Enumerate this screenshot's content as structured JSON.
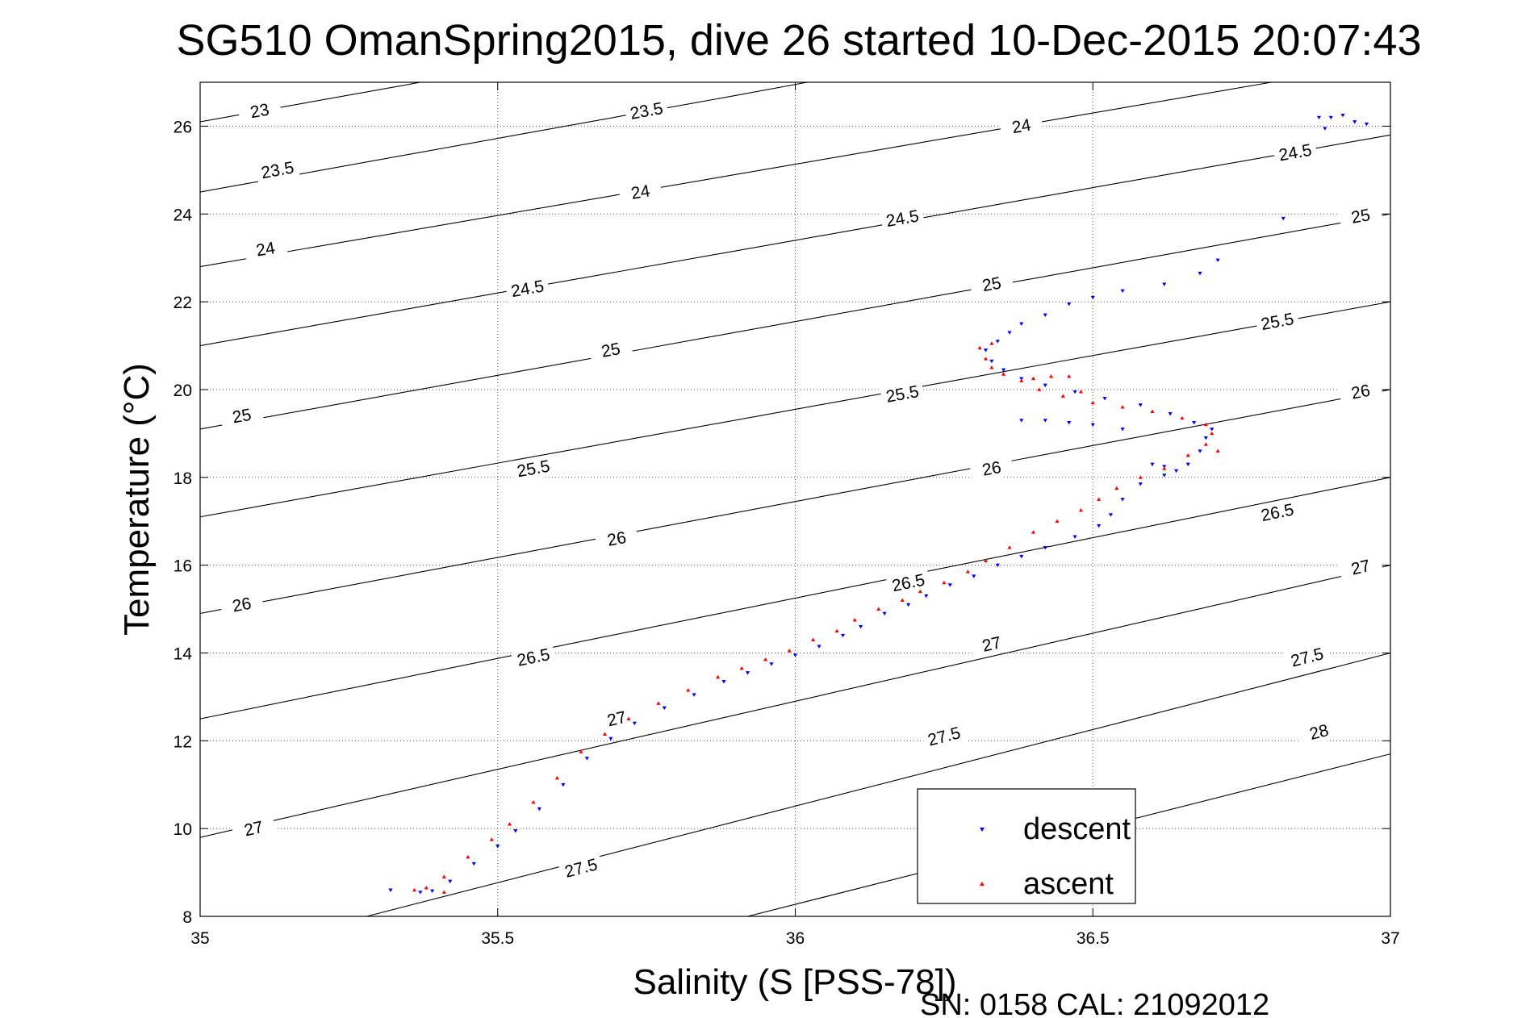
{
  "chart_data": {
    "type": "scatter",
    "title": "SG510 OmanSpring2015, dive 26 started 10-Dec-2015 20:07:43",
    "xlabel": "Salinity (S [PSS-78])",
    "ylabel": "Temperature (°C)",
    "xlim": [
      35,
      37
    ],
    "ylim": [
      8,
      27
    ],
    "xticks": [
      35,
      35.5,
      36,
      36.5,
      37
    ],
    "yticks": [
      8,
      10,
      12,
      14,
      16,
      18,
      20,
      22,
      24,
      26
    ],
    "xtick_labels": [
      "35",
      "35.5",
      "36",
      "36.5",
      "37"
    ],
    "ytick_labels": [
      "8",
      "10",
      "12",
      "14",
      "16",
      "18",
      "20",
      "22",
      "24",
      "26"
    ],
    "grid": true,
    "legend_position": "bottom-right",
    "footer": "SN: 0158  CAL: 21092012",
    "contours": [
      {
        "label": "23",
        "points": [
          [
            35,
            26.1
          ],
          [
            35.37,
            27
          ]
        ],
        "labels_at": [
          [
            35.1,
            26.35
          ]
        ]
      },
      {
        "label": "23.5",
        "points": [
          [
            35,
            24.5
          ],
          [
            35.9,
            26.7
          ],
          [
            36.02,
            27
          ]
        ],
        "labels_at": [
          [
            35.13,
            25.0
          ],
          [
            35.75,
            26.35
          ]
        ]
      },
      {
        "label": "24",
        "points": [
          [
            35,
            22.8
          ],
          [
            36.8,
            27
          ]
        ],
        "labels_at": [
          [
            35.11,
            23.2
          ],
          [
            35.74,
            24.5
          ],
          [
            36.38,
            26.0
          ]
        ]
      },
      {
        "label": "24.5",
        "points": [
          [
            35,
            21.0
          ],
          [
            37,
            25.8
          ]
        ],
        "labels_at": [
          [
            35.55,
            22.3
          ],
          [
            36.18,
            23.9
          ],
          [
            36.84,
            25.4
          ]
        ]
      },
      {
        "label": "25",
        "points": [
          [
            35,
            19.1
          ],
          [
            37,
            24.0
          ]
        ],
        "labels_at": [
          [
            35.07,
            19.4
          ],
          [
            35.69,
            20.9
          ],
          [
            36.33,
            22.4
          ],
          [
            36.95,
            23.95
          ]
        ]
      },
      {
        "label": "25.5",
        "points": [
          [
            35,
            17.1
          ],
          [
            37,
            22.0
          ]
        ],
        "labels_at": [
          [
            35.56,
            18.2
          ],
          [
            36.18,
            19.9
          ],
          [
            36.81,
            21.55
          ]
        ]
      },
      {
        "label": "26",
        "points": [
          [
            35,
            14.9
          ],
          [
            37,
            20.0
          ]
        ],
        "labels_at": [
          [
            35.07,
            15.1
          ],
          [
            35.7,
            16.6
          ],
          [
            36.33,
            18.2
          ],
          [
            36.95,
            19.95
          ]
        ]
      },
      {
        "label": "26.5",
        "points": [
          [
            35,
            12.5
          ],
          [
            37,
            18.0
          ]
        ],
        "labels_at": [
          [
            35.56,
            13.9
          ],
          [
            36.19,
            15.6
          ],
          [
            36.81,
            17.2
          ]
        ]
      },
      {
        "label": "27",
        "points": [
          [
            35,
            9.8
          ],
          [
            37,
            16.0
          ]
        ],
        "labels_at": [
          [
            35.09,
            10.0
          ],
          [
            35.7,
            12.5
          ],
          [
            36.33,
            14.2
          ],
          [
            36.95,
            15.95
          ]
        ]
      },
      {
        "label": "27.5",
        "points": [
          [
            35.28,
            8
          ],
          [
            37,
            14.0
          ]
        ],
        "labels_at": [
          [
            35.64,
            9.1
          ],
          [
            36.25,
            12.1
          ],
          [
            36.86,
            13.9
          ]
        ]
      },
      {
        "label": "28",
        "points": [
          [
            35.92,
            8
          ],
          [
            37,
            11.7
          ]
        ],
        "labels_at": [
          [
            36.88,
            12.2
          ]
        ]
      }
    ],
    "series": [
      {
        "name": "descent",
        "color": "#0000ff",
        "marker": "triangle-down",
        "points": [
          [
            35.32,
            8.6
          ],
          [
            35.37,
            8.55
          ],
          [
            35.39,
            8.58
          ],
          [
            35.42,
            8.8
          ],
          [
            35.46,
            9.2
          ],
          [
            35.5,
            9.6
          ],
          [
            35.53,
            9.95
          ],
          [
            35.57,
            10.45
          ],
          [
            35.61,
            11.0
          ],
          [
            35.65,
            11.6
          ],
          [
            35.69,
            12.05
          ],
          [
            35.73,
            12.4
          ],
          [
            35.78,
            12.75
          ],
          [
            35.83,
            13.05
          ],
          [
            35.88,
            13.35
          ],
          [
            35.92,
            13.55
          ],
          [
            35.96,
            13.75
          ],
          [
            36.0,
            13.95
          ],
          [
            36.04,
            14.15
          ],
          [
            36.08,
            14.4
          ],
          [
            36.11,
            14.6
          ],
          [
            36.15,
            14.9
          ],
          [
            36.19,
            15.1
          ],
          [
            36.22,
            15.3
          ],
          [
            36.26,
            15.55
          ],
          [
            36.3,
            15.75
          ],
          [
            36.34,
            16.0
          ],
          [
            36.38,
            16.2
          ],
          [
            36.42,
            16.4
          ],
          [
            36.47,
            16.65
          ],
          [
            36.51,
            16.9
          ],
          [
            36.53,
            17.15
          ],
          [
            36.55,
            17.5
          ],
          [
            36.58,
            17.85
          ],
          [
            36.62,
            18.05
          ],
          [
            36.66,
            18.3
          ],
          [
            36.68,
            18.6
          ],
          [
            36.69,
            18.9
          ],
          [
            36.7,
            19.1
          ],
          [
            36.67,
            19.25
          ],
          [
            36.63,
            19.45
          ],
          [
            36.58,
            19.65
          ],
          [
            36.52,
            19.8
          ],
          [
            36.47,
            19.95
          ],
          [
            36.42,
            20.1
          ],
          [
            36.38,
            20.25
          ],
          [
            36.35,
            20.45
          ],
          [
            36.33,
            20.65
          ],
          [
            36.32,
            20.9
          ],
          [
            36.34,
            21.1
          ],
          [
            36.36,
            21.3
          ],
          [
            36.38,
            21.5
          ],
          [
            36.42,
            21.7
          ],
          [
            36.46,
            21.95
          ],
          [
            36.5,
            22.1
          ],
          [
            36.55,
            22.25
          ],
          [
            36.62,
            22.4
          ],
          [
            36.68,
            22.65
          ],
          [
            36.71,
            22.95
          ],
          [
            36.38,
            19.3
          ],
          [
            36.42,
            19.3
          ],
          [
            36.46,
            19.25
          ],
          [
            36.5,
            19.2
          ],
          [
            36.55,
            19.1
          ],
          [
            36.6,
            18.3
          ],
          [
            36.62,
            18.25
          ],
          [
            36.64,
            18.15
          ],
          [
            36.82,
            23.9
          ],
          [
            36.89,
            25.95
          ],
          [
            36.9,
            26.2
          ],
          [
            36.92,
            26.25
          ],
          [
            36.94,
            26.1
          ],
          [
            36.96,
            26.05
          ],
          [
            36.88,
            26.2
          ]
        ]
      },
      {
        "name": "ascent",
        "color": "#ff0000",
        "marker": "triangle-up",
        "points": [
          [
            35.36,
            8.6
          ],
          [
            35.38,
            8.65
          ],
          [
            35.41,
            8.55
          ],
          [
            35.41,
            8.9
          ],
          [
            35.45,
            9.35
          ],
          [
            35.49,
            9.75
          ],
          [
            35.52,
            10.1
          ],
          [
            35.56,
            10.6
          ],
          [
            35.6,
            11.15
          ],
          [
            35.64,
            11.75
          ],
          [
            35.68,
            12.15
          ],
          [
            35.72,
            12.5
          ],
          [
            35.77,
            12.85
          ],
          [
            35.82,
            13.15
          ],
          [
            35.87,
            13.45
          ],
          [
            35.91,
            13.65
          ],
          [
            35.95,
            13.85
          ],
          [
            35.99,
            14.05
          ],
          [
            36.03,
            14.3
          ],
          [
            36.07,
            14.5
          ],
          [
            36.1,
            14.75
          ],
          [
            36.14,
            15.0
          ],
          [
            36.18,
            15.2
          ],
          [
            36.21,
            15.4
          ],
          [
            36.25,
            15.6
          ],
          [
            36.29,
            15.85
          ],
          [
            36.32,
            16.1
          ],
          [
            36.36,
            16.4
          ],
          [
            36.4,
            16.75
          ],
          [
            36.44,
            17.0
          ],
          [
            36.48,
            17.25
          ],
          [
            36.51,
            17.5
          ],
          [
            36.54,
            17.75
          ],
          [
            36.58,
            18.0
          ],
          [
            36.62,
            18.2
          ],
          [
            36.66,
            18.5
          ],
          [
            36.69,
            18.75
          ],
          [
            36.7,
            19.0
          ],
          [
            36.69,
            19.2
          ],
          [
            36.65,
            19.35
          ],
          [
            36.6,
            19.5
          ],
          [
            36.55,
            19.6
          ],
          [
            36.5,
            19.7
          ],
          [
            36.45,
            19.85
          ],
          [
            36.41,
            20.0
          ],
          [
            36.38,
            20.2
          ],
          [
            36.35,
            20.35
          ],
          [
            36.33,
            20.5
          ],
          [
            36.32,
            20.7
          ],
          [
            36.31,
            20.95
          ],
          [
            36.33,
            21.05
          ],
          [
            36.4,
            20.25
          ],
          [
            36.43,
            20.3
          ],
          [
            36.46,
            20.3
          ],
          [
            36.48,
            19.95
          ],
          [
            36.71,
            18.6
          ]
        ]
      }
    ]
  }
}
